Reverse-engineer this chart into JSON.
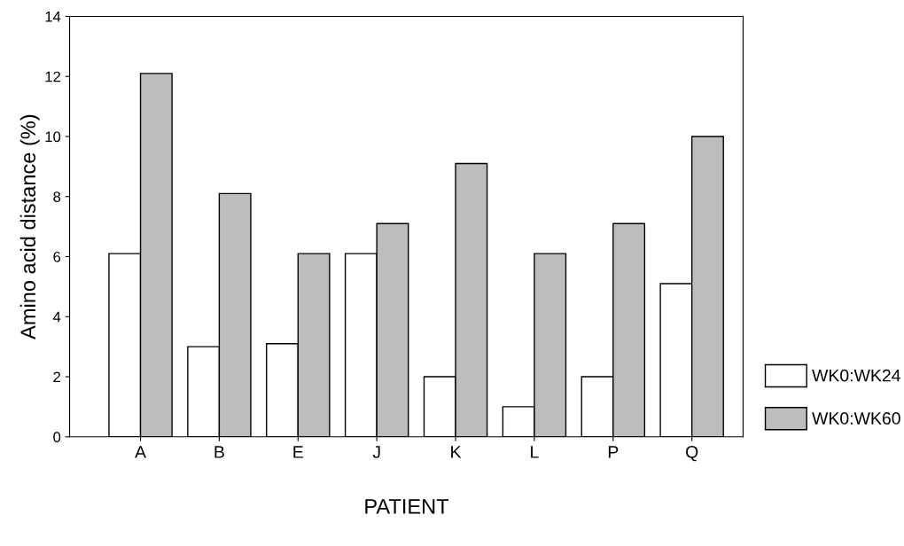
{
  "chart_data": {
    "type": "bar",
    "xlabel": "PATIENT",
    "ylabel": "Amino acid distance (%)",
    "categories": [
      "A",
      "B",
      "E",
      "J",
      "K",
      "L",
      "P",
      "Q"
    ],
    "series": [
      {
        "name": "WK0:WK24",
        "color": "#ffffff",
        "values": [
          6.1,
          3.0,
          3.1,
          6.1,
          2.0,
          1.0,
          2.0,
          5.1
        ]
      },
      {
        "name": "WK0:WK60",
        "color": "#bdbdbd",
        "values": [
          12.1,
          8.1,
          6.1,
          7.1,
          9.1,
          6.1,
          7.1,
          10.0
        ]
      }
    ],
    "ylim": [
      0,
      14
    ],
    "yticks": [
      0,
      2,
      4,
      6,
      8,
      10,
      12,
      14
    ],
    "grid": false,
    "legend": "right"
  }
}
